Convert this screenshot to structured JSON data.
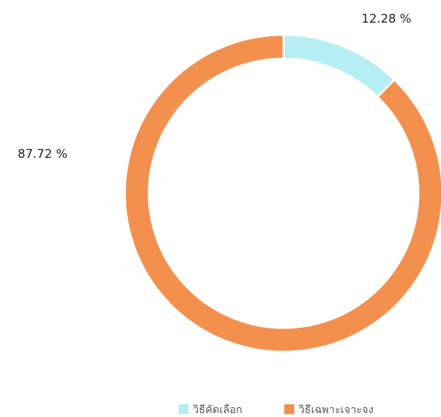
{
  "chart_data": {
    "type": "donut",
    "categories": [
      "วิธีคัดเลือก",
      "วิธีเฉพาะเจาะจง"
    ],
    "values": [
      12.28,
      87.72
    ],
    "value_labels": [
      "12.28 %",
      "87.72 %"
    ],
    "colors": [
      "#b5eef3",
      "#f4904e"
    ],
    "legend": "bottom"
  }
}
